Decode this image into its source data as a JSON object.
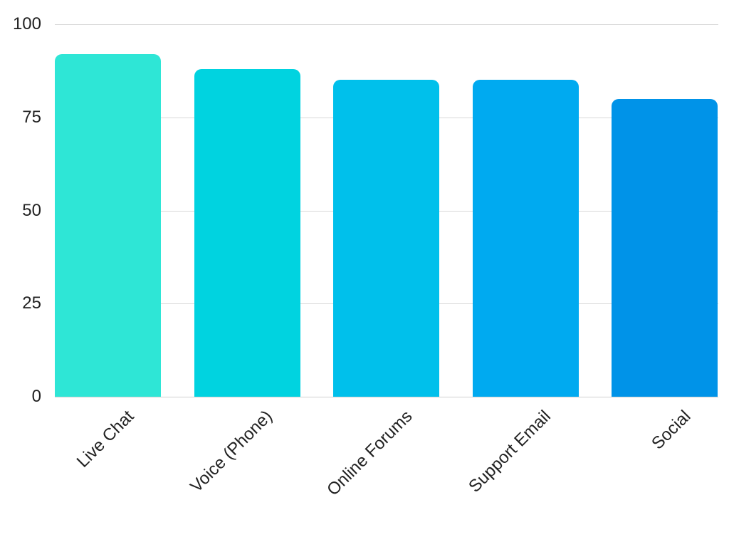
{
  "chart_data": {
    "type": "bar",
    "title": "",
    "xlabel": "",
    "ylabel": "",
    "categories": [
      "Live Chat",
      "Voice (Phone)",
      "Online Forums",
      "Support Email",
      "Social"
    ],
    "values": [
      92,
      88,
      85,
      85,
      80
    ],
    "colors": [
      "#2ee6d6",
      "#00d3e0",
      "#00c0eb",
      "#00aaf0",
      "#0093e8"
    ],
    "yticks": [
      "0",
      "25",
      "50",
      "75",
      "100"
    ],
    "ylim": [
      0,
      100
    ],
    "grid": true,
    "legend": "none"
  }
}
